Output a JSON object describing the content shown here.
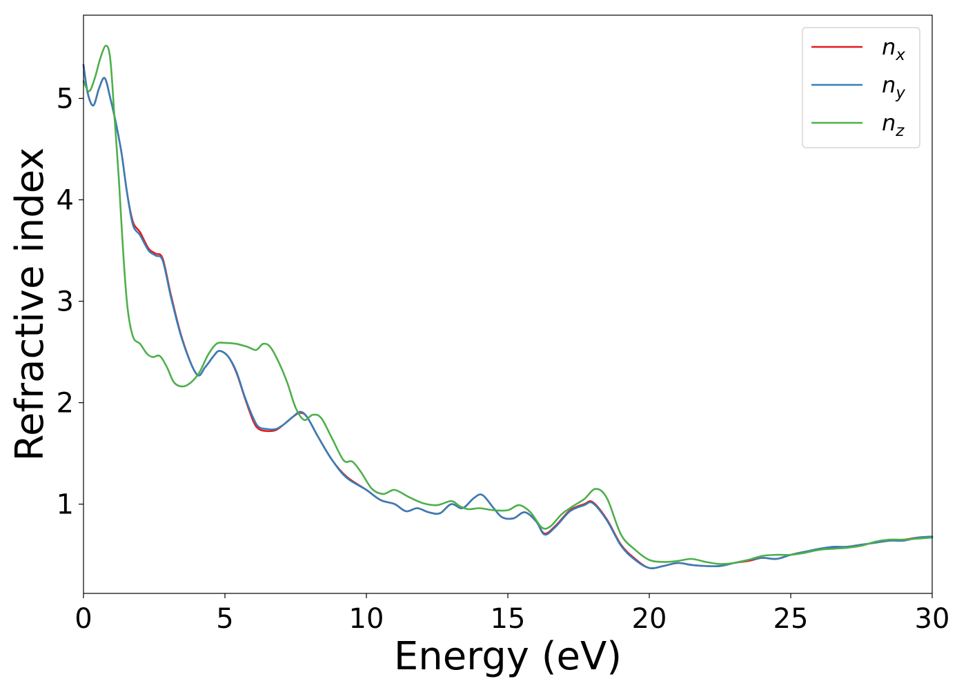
{
  "chart_data": {
    "type": "line",
    "xlabel": "Energy (eV)",
    "ylabel": "Refractive index",
    "xlim": [
      0,
      30
    ],
    "ylim": [
      0.12,
      5.82
    ],
    "x_ticks": [
      0,
      5,
      10,
      15,
      20,
      25,
      30
    ],
    "y_ticks": [
      1,
      2,
      3,
      4,
      5
    ],
    "grid": false,
    "legend_position": "top-right",
    "series": [
      {
        "name": "n",
        "subscript": "x",
        "color": "#e41a1c",
        "x": [
          0,
          0.15,
          0.35,
          0.55,
          0.75,
          0.95,
          1.15,
          1.35,
          1.55,
          1.75,
          2.0,
          2.3,
          2.55,
          2.8,
          3.1,
          3.5,
          4.0,
          4.3,
          4.6,
          4.8,
          5.1,
          5.4,
          5.7,
          6.0,
          6.2,
          6.5,
          6.8,
          7.1,
          7.4,
          7.65,
          7.9,
          8.3,
          8.8,
          9.3,
          10.0,
          10.5,
          11.0,
          11.4,
          11.8,
          12.2,
          12.6,
          13.0,
          13.4,
          13.8,
          14.1,
          14.5,
          14.8,
          15.2,
          15.6,
          16.0,
          16.3,
          16.7,
          17.2,
          17.7,
          18.0,
          18.5,
          19.0,
          19.5,
          20.0,
          20.5,
          21.0,
          21.5,
          22.0,
          22.5,
          23.0,
          23.5,
          24.0,
          24.5,
          25.0,
          25.5,
          26.0,
          26.5,
          27.0,
          27.5,
          28.0,
          28.5,
          29.0,
          29.5,
          30.0
        ],
        "values": [
          5.33,
          5.05,
          4.93,
          5.1,
          5.2,
          5.0,
          4.75,
          4.45,
          4.05,
          3.78,
          3.68,
          3.52,
          3.47,
          3.42,
          3.05,
          2.62,
          2.28,
          2.35,
          2.46,
          2.51,
          2.46,
          2.3,
          2.05,
          1.82,
          1.74,
          1.72,
          1.73,
          1.79,
          1.86,
          1.9,
          1.86,
          1.66,
          1.43,
          1.27,
          1.14,
          1.04,
          1.0,
          0.93,
          0.96,
          0.92,
          0.91,
          1.0,
          0.96,
          1.06,
          1.09,
          0.96,
          0.87,
          0.86,
          0.92,
          0.83,
          0.71,
          0.79,
          0.94,
          1.0,
          1.02,
          0.85,
          0.6,
          0.46,
          0.37,
          0.39,
          0.42,
          0.4,
          0.39,
          0.39,
          0.42,
          0.44,
          0.47,
          0.46,
          0.5,
          0.53,
          0.55,
          0.57,
          0.58,
          0.6,
          0.62,
          0.64,
          0.65,
          0.67,
          0.68
        ]
      },
      {
        "name": "n",
        "subscript": "y",
        "color": "#377eb8",
        "x": [
          0,
          0.15,
          0.35,
          0.55,
          0.75,
          0.95,
          1.15,
          1.35,
          1.55,
          1.75,
          2.0,
          2.3,
          2.55,
          2.8,
          3.1,
          3.5,
          4.0,
          4.3,
          4.6,
          4.8,
          5.1,
          5.4,
          5.7,
          6.0,
          6.2,
          6.5,
          6.8,
          7.1,
          7.4,
          7.65,
          7.9,
          8.3,
          8.8,
          9.3,
          10.0,
          10.5,
          11.0,
          11.4,
          11.8,
          12.2,
          12.6,
          13.0,
          13.4,
          13.8,
          14.1,
          14.5,
          14.8,
          15.2,
          15.6,
          16.0,
          16.3,
          16.7,
          17.2,
          17.7,
          18.0,
          18.5,
          19.0,
          19.5,
          20.0,
          20.5,
          21.0,
          21.5,
          22.0,
          22.5,
          23.0,
          23.5,
          24.0,
          24.5,
          25.0,
          25.5,
          26.0,
          26.5,
          27.0,
          27.5,
          28.0,
          28.5,
          29.0,
          29.5,
          30.0
        ],
        "values": [
          5.33,
          5.05,
          4.93,
          5.1,
          5.2,
          5.0,
          4.75,
          4.45,
          4.05,
          3.75,
          3.65,
          3.5,
          3.45,
          3.4,
          3.03,
          2.61,
          2.28,
          2.35,
          2.46,
          2.51,
          2.46,
          2.31,
          2.06,
          1.85,
          1.76,
          1.74,
          1.74,
          1.79,
          1.86,
          1.91,
          1.86,
          1.66,
          1.43,
          1.26,
          1.14,
          1.04,
          1.0,
          0.93,
          0.96,
          0.92,
          0.91,
          1.0,
          0.96,
          1.06,
          1.09,
          0.96,
          0.87,
          0.86,
          0.92,
          0.83,
          0.7,
          0.78,
          0.93,
          0.99,
          1.01,
          0.84,
          0.59,
          0.45,
          0.37,
          0.39,
          0.42,
          0.4,
          0.39,
          0.39,
          0.42,
          0.45,
          0.47,
          0.46,
          0.5,
          0.53,
          0.56,
          0.58,
          0.58,
          0.6,
          0.62,
          0.64,
          0.64,
          0.67,
          0.68
        ]
      },
      {
        "name": "n",
        "subscript": "z",
        "color": "#4daf4a",
        "x": [
          0,
          0.2,
          0.4,
          0.6,
          0.8,
          0.95,
          1.1,
          1.25,
          1.4,
          1.55,
          1.75,
          2.0,
          2.25,
          2.45,
          2.7,
          2.95,
          3.2,
          3.5,
          3.8,
          4.1,
          4.4,
          4.7,
          5.0,
          5.4,
          5.8,
          6.1,
          6.35,
          6.6,
          6.9,
          7.2,
          7.5,
          7.8,
          8.1,
          8.4,
          8.8,
          9.2,
          9.5,
          9.8,
          10.2,
          10.6,
          11.0,
          11.5,
          12.0,
          12.5,
          13.0,
          13.3,
          13.6,
          14.0,
          14.5,
          15.0,
          15.4,
          15.8,
          16.2,
          16.5,
          16.9,
          17.3,
          17.7,
          18.1,
          18.5,
          19.0,
          19.5,
          20.0,
          20.5,
          21.0,
          21.5,
          22.0,
          22.5,
          23.0,
          23.5,
          24.0,
          24.5,
          25.0,
          25.5,
          26.0,
          26.5,
          27.0,
          27.5,
          28.0,
          28.5,
          29.0,
          29.5,
          30.0
        ],
        "values": [
          5.17,
          5.07,
          5.2,
          5.4,
          5.52,
          5.38,
          4.8,
          4.2,
          3.5,
          2.95,
          2.65,
          2.58,
          2.48,
          2.45,
          2.46,
          2.35,
          2.2,
          2.16,
          2.2,
          2.3,
          2.47,
          2.58,
          2.59,
          2.58,
          2.55,
          2.52,
          2.58,
          2.55,
          2.4,
          2.2,
          1.95,
          1.83,
          1.88,
          1.85,
          1.64,
          1.43,
          1.42,
          1.32,
          1.15,
          1.1,
          1.14,
          1.07,
          1.01,
          0.99,
          1.03,
          0.98,
          0.95,
          0.96,
          0.94,
          0.94,
          0.99,
          0.92,
          0.77,
          0.78,
          0.9,
          0.98,
          1.05,
          1.15,
          1.06,
          0.7,
          0.55,
          0.45,
          0.43,
          0.44,
          0.46,
          0.43,
          0.41,
          0.42,
          0.45,
          0.49,
          0.5,
          0.5,
          0.52,
          0.55,
          0.56,
          0.57,
          0.59,
          0.63,
          0.65,
          0.65,
          0.66,
          0.67
        ]
      }
    ]
  }
}
